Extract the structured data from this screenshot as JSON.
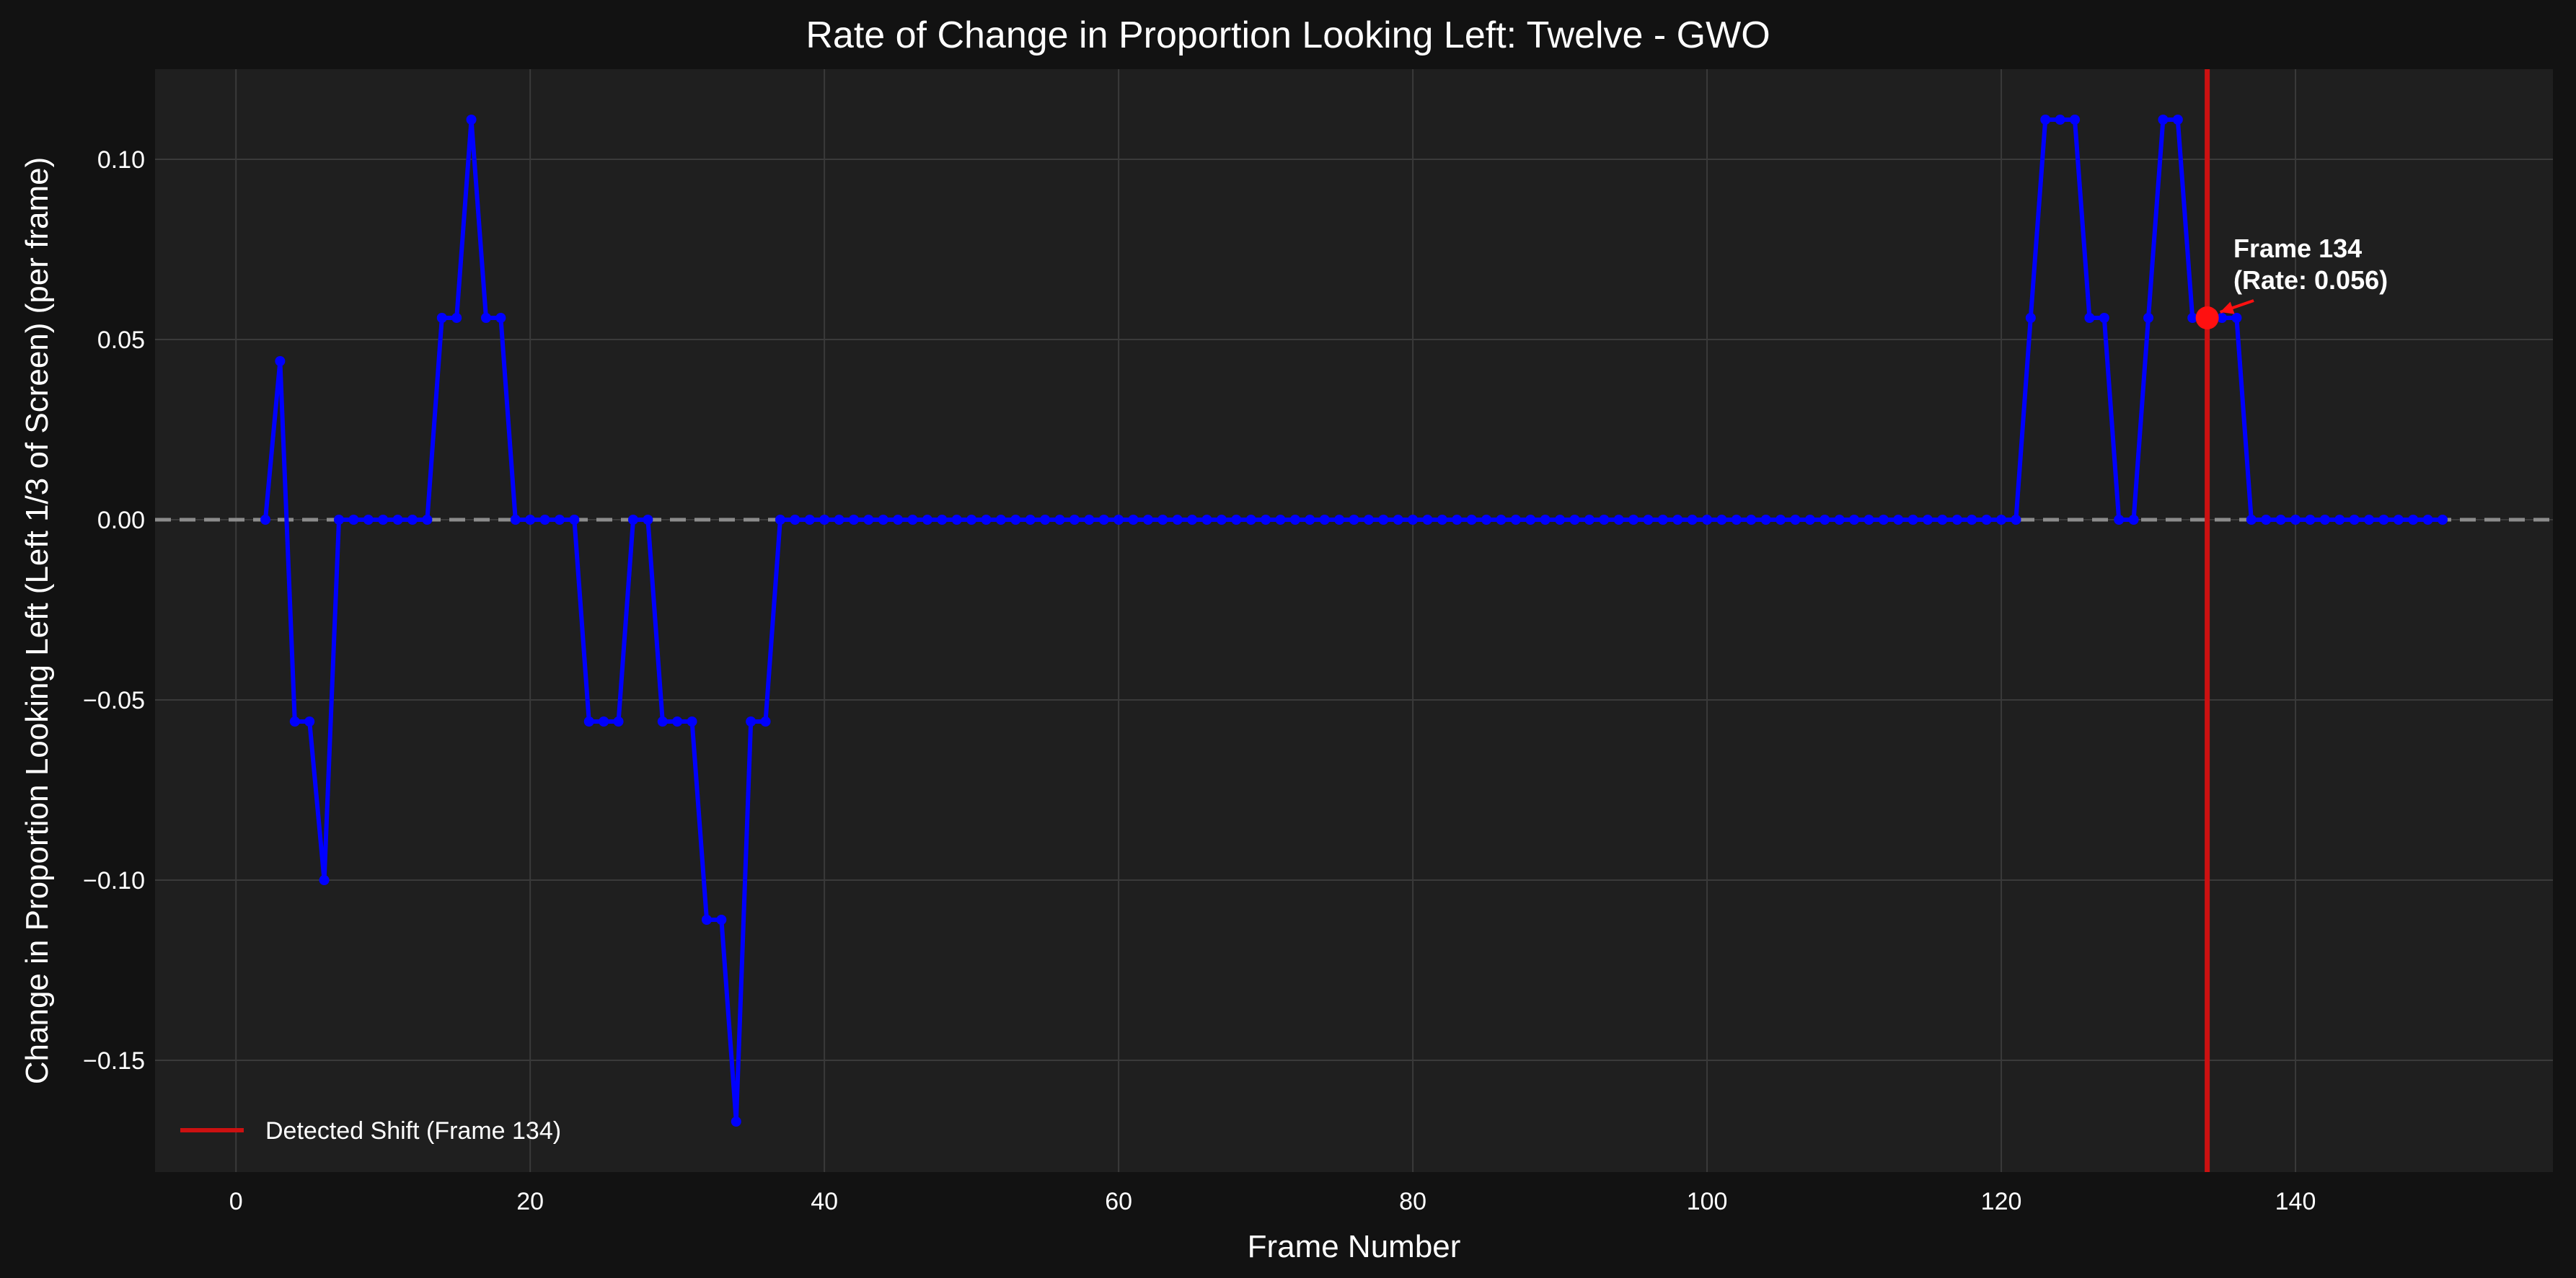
{
  "chart_data": {
    "type": "line",
    "title": "Rate of Change in Proportion Looking Left: Twelve - GWO",
    "xlabel": "Frame Number",
    "ylabel": "Change in Proportion Looking Left (Left 1/3 of Screen) (per frame)",
    "xlim": [
      -5.5,
      157.5
    ],
    "ylim": [
      -0.181,
      0.125
    ],
    "xticks": [
      0,
      20,
      40,
      60,
      80,
      100,
      120,
      140
    ],
    "yticks": [
      -0.15,
      -0.1,
      -0.05,
      0.0,
      0.05,
      0.1
    ],
    "xtick_labels": [
      "0",
      "20",
      "40",
      "60",
      "80",
      "100",
      "120",
      "140"
    ],
    "ytick_labels": [
      "−0.15",
      "−0.10",
      "−0.05",
      "0.00",
      "0.05",
      "0.10"
    ],
    "grid": true,
    "reference_line": {
      "y": 0.0,
      "style": "dashed",
      "color": "#8c8c8c"
    },
    "series": [
      {
        "color": "#0000ff",
        "x": [
          2,
          3,
          4,
          5,
          6,
          7,
          8,
          9,
          10,
          11,
          12,
          13,
          14,
          15,
          16,
          17,
          18,
          19,
          20,
          21,
          22,
          23,
          24,
          25,
          26,
          27,
          28,
          29,
          30,
          31,
          32,
          33,
          34,
          35,
          36,
          37,
          38,
          39,
          40,
          41,
          42,
          43,
          44,
          45,
          46,
          47,
          48,
          49,
          50,
          51,
          52,
          53,
          54,
          55,
          56,
          57,
          58,
          59,
          60,
          61,
          62,
          63,
          64,
          65,
          66,
          67,
          68,
          69,
          70,
          71,
          72,
          73,
          74,
          75,
          76,
          77,
          78,
          79,
          80,
          81,
          82,
          83,
          84,
          85,
          86,
          87,
          88,
          89,
          90,
          91,
          92,
          93,
          94,
          95,
          96,
          97,
          98,
          99,
          100,
          101,
          102,
          103,
          104,
          105,
          106,
          107,
          108,
          109,
          110,
          111,
          112,
          113,
          114,
          115,
          116,
          117,
          118,
          119,
          120,
          121,
          122,
          123,
          124,
          125,
          126,
          127,
          128,
          129,
          130,
          131,
          132,
          133,
          134,
          135,
          136,
          137,
          138,
          139,
          140,
          141,
          142,
          143,
          144,
          145,
          146,
          147,
          148,
          149,
          150
        ],
        "y": [
          0.0,
          0.044,
          -0.056,
          -0.056,
          -0.1,
          0.0,
          0.0,
          0.0,
          0.0,
          0.0,
          0.0,
          0.0,
          0.056,
          0.056,
          0.111,
          0.056,
          0.056,
          0.0,
          0.0,
          0.0,
          0.0,
          0.0,
          -0.056,
          -0.056,
          -0.056,
          0.0,
          0.0,
          -0.056,
          -0.056,
          -0.056,
          -0.111,
          -0.111,
          -0.167,
          -0.056,
          -0.056,
          0.0,
          0.0,
          0.0,
          0.0,
          0.0,
          0.0,
          0.0,
          0.0,
          0.0,
          0.0,
          0.0,
          0.0,
          0.0,
          0.0,
          0.0,
          0.0,
          0.0,
          0.0,
          0.0,
          0.0,
          0.0,
          0.0,
          0.0,
          0.0,
          0.0,
          0.0,
          0.0,
          0.0,
          0.0,
          0.0,
          0.0,
          0.0,
          0.0,
          0.0,
          0.0,
          0.0,
          0.0,
          0.0,
          0.0,
          0.0,
          0.0,
          0.0,
          0.0,
          0.0,
          0.0,
          0.0,
          0.0,
          0.0,
          0.0,
          0.0,
          0.0,
          0.0,
          0.0,
          0.0,
          0.0,
          0.0,
          0.0,
          0.0,
          0.0,
          0.0,
          0.0,
          0.0,
          0.0,
          0.0,
          0.0,
          0.0,
          0.0,
          0.0,
          0.0,
          0.0,
          0.0,
          0.0,
          0.0,
          0.0,
          0.0,
          0.0,
          0.0,
          0.0,
          0.0,
          0.0,
          0.0,
          0.0,
          0.0,
          0.0,
          0.0,
          0.056,
          0.111,
          0.111,
          0.111,
          0.056,
          0.056,
          0.0,
          0.0,
          0.056,
          0.111,
          0.111,
          0.056,
          0.056,
          0.056,
          0.056,
          0.0,
          0.0,
          0.0,
          0.0,
          0.0,
          0.0,
          0.0,
          0.0,
          0.0,
          0.0,
          0.0,
          0.0,
          0.0,
          0.0
        ]
      }
    ],
    "vertical_marker": {
      "x": 134,
      "color": "#cc1111",
      "legend_label": "Detected Shift (Frame 134)"
    },
    "highlight_point": {
      "x": 134,
      "y": 0.056,
      "color": "#ff1010"
    },
    "annotation": {
      "line1": "Frame 134",
      "line2": "(Rate: 0.056)",
      "x": 135,
      "y": 0.072
    },
    "legend": {
      "placement": "lower-left",
      "entries": [
        "Detected Shift (Frame 134)"
      ]
    }
  }
}
